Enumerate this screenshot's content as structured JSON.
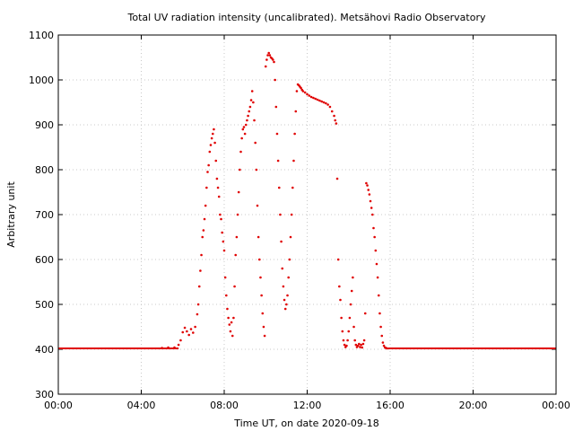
{
  "chart_data": {
    "type": "scatter",
    "title": "Total UV radiation intensity (uncalibrated). Metsähovi Radio Observatory",
    "xlabel": "Time UT, on date 2020-09-18",
    "ylabel": "Arbitrary unit",
    "x_unit": "hours UT",
    "xlim": [
      0,
      24
    ],
    "ylim": [
      300,
      1100
    ],
    "x_ticks": [
      0,
      4,
      8,
      12,
      16,
      20,
      24
    ],
    "x_tick_labels": [
      "00:00",
      "04:00",
      "08:00",
      "12:00",
      "16:00",
      "20:00",
      "00:00"
    ],
    "y_ticks": [
      300,
      400,
      500,
      600,
      700,
      800,
      900,
      1000,
      1100
    ],
    "y_tick_labels": [
      "300",
      "400",
      "500",
      "600",
      "700",
      "800",
      "900",
      "1000",
      "1100"
    ],
    "grid": true,
    "point_color": "#e00000",
    "baseline": {
      "x_start": 0.0,
      "x_end": 5.8,
      "y": 402
    },
    "baseline_evening": {
      "x_start": 15.9,
      "x_end": 24.0,
      "y": 402
    },
    "series": [
      {
        "values": [
          [
            5.0,
            403
          ],
          [
            5.3,
            404
          ],
          [
            5.6,
            404
          ],
          [
            5.8,
            410
          ],
          [
            5.9,
            420
          ],
          [
            6.0,
            438
          ],
          [
            6.1,
            448
          ],
          [
            6.2,
            440
          ],
          [
            6.3,
            432
          ],
          [
            6.4,
            445
          ],
          [
            6.5,
            437
          ],
          [
            6.6,
            450
          ],
          [
            6.7,
            478
          ],
          [
            6.75,
            500
          ],
          [
            6.8,
            540
          ],
          [
            6.85,
            575
          ],
          [
            6.9,
            610
          ],
          [
            6.95,
            650
          ],
          [
            7.0,
            665
          ],
          [
            7.05,
            690
          ],
          [
            7.1,
            720
          ],
          [
            7.15,
            760
          ],
          [
            7.2,
            795
          ],
          [
            7.25,
            810
          ],
          [
            7.3,
            840
          ],
          [
            7.35,
            855
          ],
          [
            7.4,
            870
          ],
          [
            7.45,
            880
          ],
          [
            7.5,
            890
          ],
          [
            7.55,
            860
          ],
          [
            7.6,
            820
          ],
          [
            7.65,
            780
          ],
          [
            7.7,
            760
          ],
          [
            7.75,
            740
          ],
          [
            7.8,
            700
          ],
          [
            7.85,
            690
          ],
          [
            7.9,
            660
          ],
          [
            7.95,
            640
          ],
          [
            8.0,
            620
          ],
          [
            8.05,
            560
          ],
          [
            8.1,
            520
          ],
          [
            8.15,
            490
          ],
          [
            8.2,
            470
          ],
          [
            8.25,
            455
          ],
          [
            8.3,
            440
          ],
          [
            8.35,
            460
          ],
          [
            8.4,
            430
          ],
          [
            8.45,
            470
          ],
          [
            8.5,
            540
          ],
          [
            8.55,
            610
          ],
          [
            8.6,
            650
          ],
          [
            8.65,
            700
          ],
          [
            8.7,
            750
          ],
          [
            8.75,
            800
          ],
          [
            8.8,
            840
          ],
          [
            8.85,
            870
          ],
          [
            8.9,
            890
          ],
          [
            8.95,
            895
          ],
          [
            9.0,
            880
          ],
          [
            9.05,
            900
          ],
          [
            9.1,
            910
          ],
          [
            9.15,
            920
          ],
          [
            9.2,
            930
          ],
          [
            9.25,
            940
          ],
          [
            9.3,
            955
          ],
          [
            9.35,
            975
          ],
          [
            9.4,
            950
          ],
          [
            9.45,
            910
          ],
          [
            9.5,
            860
          ],
          [
            9.55,
            800
          ],
          [
            9.6,
            720
          ],
          [
            9.65,
            650
          ],
          [
            9.7,
            600
          ],
          [
            9.75,
            560
          ],
          [
            9.8,
            520
          ],
          [
            9.85,
            480
          ],
          [
            9.9,
            450
          ],
          [
            9.95,
            430
          ],
          [
            10.0,
            1030
          ],
          [
            10.05,
            1045
          ],
          [
            10.1,
            1055
          ],
          [
            10.15,
            1060
          ],
          [
            10.2,
            1055
          ],
          [
            10.25,
            1050
          ],
          [
            10.3,
            1048
          ],
          [
            10.35,
            1045
          ],
          [
            10.4,
            1040
          ],
          [
            10.45,
            1000
          ],
          [
            10.5,
            940
          ],
          [
            10.55,
            880
          ],
          [
            10.6,
            820
          ],
          [
            10.65,
            760
          ],
          [
            10.7,
            700
          ],
          [
            10.75,
            640
          ],
          [
            10.8,
            580
          ],
          [
            10.85,
            540
          ],
          [
            10.9,
            510
          ],
          [
            10.95,
            490
          ],
          [
            11.0,
            500
          ],
          [
            11.05,
            520
          ],
          [
            11.1,
            560
          ],
          [
            11.15,
            600
          ],
          [
            11.2,
            650
          ],
          [
            11.25,
            700
          ],
          [
            11.3,
            760
          ],
          [
            11.35,
            820
          ],
          [
            11.4,
            880
          ],
          [
            11.45,
            930
          ],
          [
            11.5,
            975
          ],
          [
            11.55,
            990
          ],
          [
            11.6,
            988
          ],
          [
            11.65,
            985
          ],
          [
            11.7,
            982
          ],
          [
            11.75,
            978
          ],
          [
            11.8,
            975
          ],
          [
            11.9,
            972
          ],
          [
            12.0,
            968
          ],
          [
            12.1,
            965
          ],
          [
            12.2,
            962
          ],
          [
            12.3,
            960
          ],
          [
            12.4,
            958
          ],
          [
            12.5,
            956
          ],
          [
            12.6,
            954
          ],
          [
            12.7,
            952
          ],
          [
            12.8,
            950
          ],
          [
            12.9,
            948
          ],
          [
            13.0,
            945
          ],
          [
            13.1,
            940
          ],
          [
            13.2,
            930
          ],
          [
            13.3,
            920
          ],
          [
            13.35,
            910
          ],
          [
            13.4,
            903
          ],
          [
            13.45,
            780
          ],
          [
            13.5,
            600
          ],
          [
            13.55,
            540
          ],
          [
            13.6,
            510
          ],
          [
            13.65,
            470
          ],
          [
            13.7,
            440
          ],
          [
            13.75,
            420
          ],
          [
            13.8,
            410
          ],
          [
            13.85,
            405
          ],
          [
            13.9,
            408
          ],
          [
            13.95,
            420
          ],
          [
            14.0,
            440
          ],
          [
            14.05,
            470
          ],
          [
            14.1,
            500
          ],
          [
            14.15,
            530
          ],
          [
            14.2,
            560
          ],
          [
            14.25,
            450
          ],
          [
            14.3,
            420
          ],
          [
            14.35,
            410
          ],
          [
            14.4,
            405
          ],
          [
            14.45,
            408
          ],
          [
            14.5,
            412
          ],
          [
            14.55,
            405
          ],
          [
            14.6,
            410
          ],
          [
            14.65,
            404
          ],
          [
            14.7,
            412
          ],
          [
            14.75,
            420
          ],
          [
            14.8,
            480
          ],
          [
            14.85,
            770
          ],
          [
            14.9,
            765
          ],
          [
            14.95,
            755
          ],
          [
            15.0,
            745
          ],
          [
            15.05,
            730
          ],
          [
            15.1,
            715
          ],
          [
            15.15,
            700
          ],
          [
            15.2,
            670
          ],
          [
            15.25,
            650
          ],
          [
            15.3,
            620
          ],
          [
            15.35,
            590
          ],
          [
            15.4,
            560
          ],
          [
            15.45,
            520
          ],
          [
            15.5,
            480
          ],
          [
            15.55,
            450
          ],
          [
            15.6,
            430
          ],
          [
            15.65,
            415
          ],
          [
            15.7,
            408
          ],
          [
            15.75,
            404
          ],
          [
            15.8,
            403
          ],
          [
            15.85,
            402
          ]
        ]
      }
    ]
  }
}
